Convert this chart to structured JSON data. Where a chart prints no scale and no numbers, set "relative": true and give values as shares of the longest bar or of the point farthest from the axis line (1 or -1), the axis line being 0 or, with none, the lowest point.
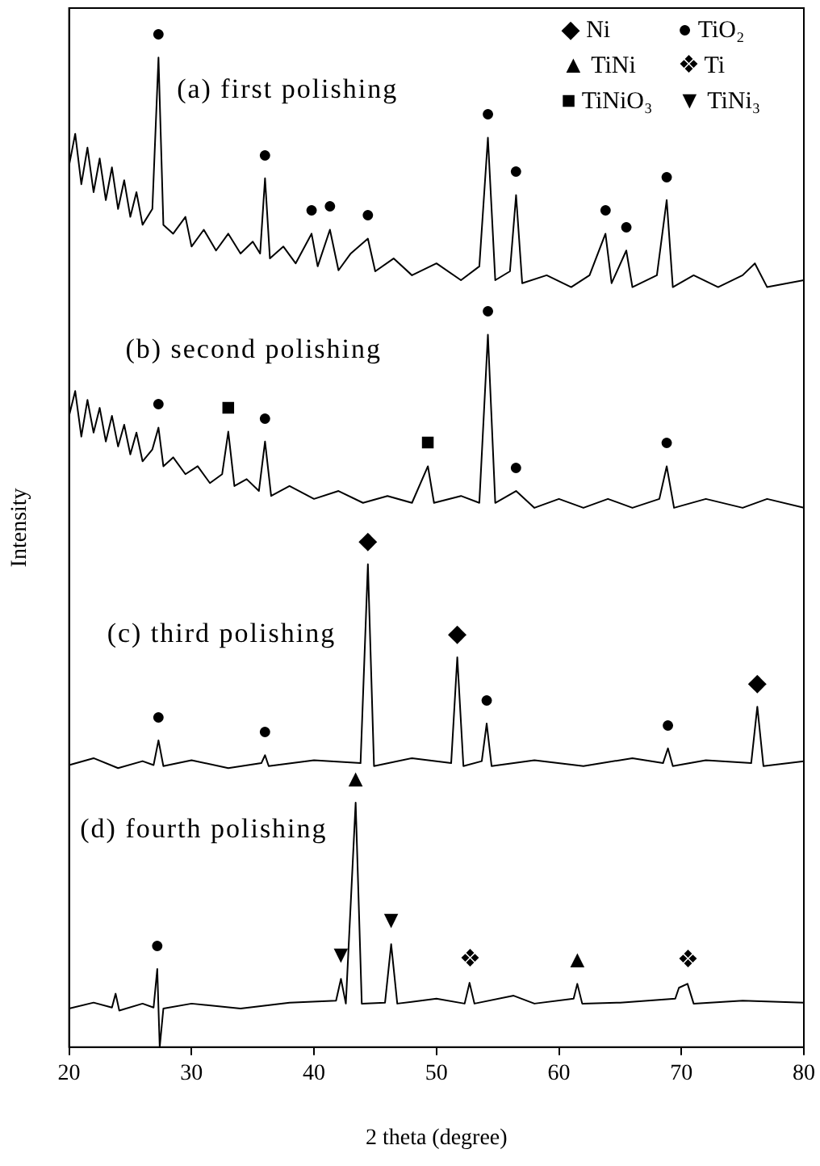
{
  "chart_data": {
    "type": "line",
    "relative": true,
    "xlabel": "2 theta (degree)",
    "ylabel": "Intensity",
    "xlim": [
      20,
      80
    ],
    "xticks": [
      20,
      30,
      40,
      50,
      60,
      70,
      80
    ],
    "grid": false,
    "legend": false,
    "marker": "none",
    "line_style": "solid",
    "series": [
      {
        "name": "(a) first polishing",
        "color": "#000000",
        "x": [
          20,
          20.5,
          21,
          21.5,
          22,
          22.5,
          23,
          23.5,
          24,
          24.5,
          25,
          25.5,
          26,
          26.8,
          27.3,
          27.7,
          28.5,
          29.5,
          30,
          31,
          32,
          33,
          34,
          35,
          35.6,
          36,
          36.4,
          37.5,
          38.5,
          39.8,
          40.3,
          41.3,
          42,
          43,
          44.4,
          45,
          46.5,
          48,
          50,
          52,
          53.5,
          54.2,
          54.8,
          56,
          56.5,
          57,
          59,
          61,
          62.5,
          63.8,
          64.3,
          65.5,
          66,
          68,
          68.8,
          69.3,
          71,
          73,
          75,
          76,
          77,
          80
        ],
        "values": [
          0.891,
          0.923,
          0.872,
          0.909,
          0.864,
          0.898,
          0.856,
          0.889,
          0.847,
          0.876,
          0.839,
          0.864,
          0.831,
          0.847,
          1,
          0.831,
          0.822,
          0.839,
          0.809,
          0.826,
          0.805,
          0.822,
          0.802,
          0.814,
          0.802,
          0.878,
          0.797,
          0.809,
          0.792,
          0.822,
          0.789,
          0.826,
          0.785,
          0.802,
          0.817,
          0.784,
          0.797,
          0.78,
          0.792,
          0.775,
          0.789,
          0.919,
          0.775,
          0.784,
          0.861,
          0.772,
          0.78,
          0.768,
          0.78,
          0.822,
          0.772,
          0.805,
          0.768,
          0.78,
          0.856,
          0.768,
          0.78,
          0.768,
          0.78,
          0.792,
          0.768,
          0.775
        ]
      },
      {
        "name": "(b) second polishing",
        "color": "#000000",
        "x": [
          20,
          20.5,
          21,
          21.5,
          22,
          22.5,
          23,
          23.5,
          24,
          24.5,
          25,
          25.5,
          26,
          26.8,
          27.3,
          27.7,
          28.5,
          29.5,
          30.5,
          31.5,
          32.5,
          33,
          33.5,
          34.5,
          35.5,
          36,
          36.5,
          38,
          40,
          42,
          44,
          46,
          48,
          49.3,
          49.8,
          52,
          53.5,
          54.2,
          54.8,
          56.5,
          58,
          60,
          62,
          64,
          66,
          68.2,
          68.8,
          69.4,
          72,
          75,
          77,
          80
        ],
        "values": [
          0.638,
          0.663,
          0.617,
          0.654,
          0.621,
          0.646,
          0.612,
          0.638,
          0.607,
          0.629,
          0.599,
          0.621,
          0.592,
          0.604,
          0.626,
          0.587,
          0.596,
          0.579,
          0.587,
          0.57,
          0.579,
          0.622,
          0.567,
          0.574,
          0.562,
          0.612,
          0.557,
          0.567,
          0.554,
          0.562,
          0.55,
          0.557,
          0.55,
          0.587,
          0.55,
          0.557,
          0.55,
          0.72,
          0.55,
          0.562,
          0.545,
          0.554,
          0.545,
          0.554,
          0.545,
          0.554,
          0.587,
          0.545,
          0.554,
          0.545,
          0.554,
          0.545
        ]
      },
      {
        "name": "(c) third polishing",
        "color": "#000000",
        "x": [
          20,
          22,
          24,
          26,
          26.9,
          27.3,
          27.7,
          30,
          33,
          35.7,
          36,
          36.3,
          40,
          43.8,
          44.4,
          44.9,
          48,
          51.2,
          51.7,
          52.2,
          53.7,
          54.1,
          54.5,
          58,
          62,
          66,
          68.5,
          68.9,
          69.3,
          72,
          75.7,
          76.2,
          76.7,
          80
        ],
        "values": [
          0.285,
          0.292,
          0.282,
          0.289,
          0.285,
          0.31,
          0.284,
          0.29,
          0.282,
          0.287,
          0.295,
          0.284,
          0.29,
          0.287,
          0.488,
          0.284,
          0.292,
          0.287,
          0.394,
          0.284,
          0.289,
          0.327,
          0.284,
          0.29,
          0.284,
          0.292,
          0.287,
          0.302,
          0.284,
          0.29,
          0.287,
          0.344,
          0.284,
          0.289
        ]
      },
      {
        "name": "(d) fourth polishing",
        "color": "#000000",
        "x": [
          20,
          22,
          23.5,
          23.8,
          24.1,
          26,
          26.9,
          27.2,
          27.4,
          27.7,
          30,
          34,
          38,
          41.8,
          42.2,
          42.6,
          43.4,
          43.9,
          45.8,
          46.3,
          46.8,
          50,
          52.3,
          52.7,
          53.1,
          56.3,
          58,
          61.2,
          61.5,
          61.9,
          65,
          69.5,
          69.8,
          70.5,
          71,
          75,
          80
        ],
        "values": [
          0.039,
          0.045,
          0.04,
          0.054,
          0.037,
          0.044,
          0.04,
          0.079,
          0,
          0.039,
          0.044,
          0.039,
          0.045,
          0.047,
          0.069,
          0.044,
          0.247,
          0.044,
          0.045,
          0.104,
          0.044,
          0.049,
          0.044,
          0.065,
          0.044,
          0.052,
          0.044,
          0.049,
          0.064,
          0.044,
          0.045,
          0.049,
          0.06,
          0.064,
          0.044,
          0.047,
          0.045
        ]
      }
    ],
    "annotations": [
      "◆ Ni",
      "● TiO₂",
      "▲ TiNi",
      "❖ Ti",
      "■ TiNiO₃",
      "▼ TiNi₃",
      {
        "text": "●",
        "x": 27.3,
        "y": 1
      },
      {
        "text": "●",
        "x": 36,
        "y": 0.878
      },
      {
        "text": "●",
        "x": 39.8,
        "y": 0.822
      },
      {
        "text": "●",
        "x": 41.3,
        "y": 0.826
      },
      {
        "text": "●",
        "x": 44.4,
        "y": 0.817
      },
      {
        "text": "●",
        "x": 54.2,
        "y": 0.919
      },
      {
        "text": "●",
        "x": 56.5,
        "y": 0.861
      },
      {
        "text": "●",
        "x": 63.8,
        "y": 0.822
      },
      {
        "text": "●",
        "x": 65.5,
        "y": 0.805
      },
      {
        "text": "●",
        "x": 68.8,
        "y": 0.856
      },
      {
        "text": "●",
        "x": 27.3,
        "y": 0.626
      },
      {
        "text": "■",
        "x": 33,
        "y": 0.622
      },
      {
        "text": "●",
        "x": 36,
        "y": 0.612
      },
      {
        "text": "■",
        "x": 49.3,
        "y": 0.587
      },
      {
        "text": "●",
        "x": 54.2,
        "y": 0.72
      },
      {
        "text": "●",
        "x": 56.5,
        "y": 0.562
      },
      {
        "text": "●",
        "x": 68.8,
        "y": 0.587
      },
      {
        "text": "●",
        "x": 27.3,
        "y": 0.31
      },
      {
        "text": "●",
        "x": 36,
        "y": 0.295
      },
      {
        "text": "◆",
        "x": 44.4,
        "y": 0.488
      },
      {
        "text": "◆",
        "x": 51.7,
        "y": 0.394
      },
      {
        "text": "●",
        "x": 54.1,
        "y": 0.327
      },
      {
        "text": "●",
        "x": 68.9,
        "y": 0.302
      },
      {
        "text": "◆",
        "x": 76.2,
        "y": 0.344
      },
      {
        "text": "●",
        "x": 27.2,
        "y": 0.079
      },
      {
        "text": "▼",
        "x": 42.2,
        "y": 0.069
      },
      {
        "text": "▲",
        "x": 43.4,
        "y": 0.247
      },
      {
        "text": "▼",
        "x": 46.3,
        "y": 0.104
      },
      {
        "text": "❖",
        "x": 52.7,
        "y": 0.065
      },
      {
        "text": "▲",
        "x": 61.5,
        "y": 0.064
      },
      {
        "text": "❖",
        "x": 70.5,
        "y": 0.064
      }
    ]
  }
}
